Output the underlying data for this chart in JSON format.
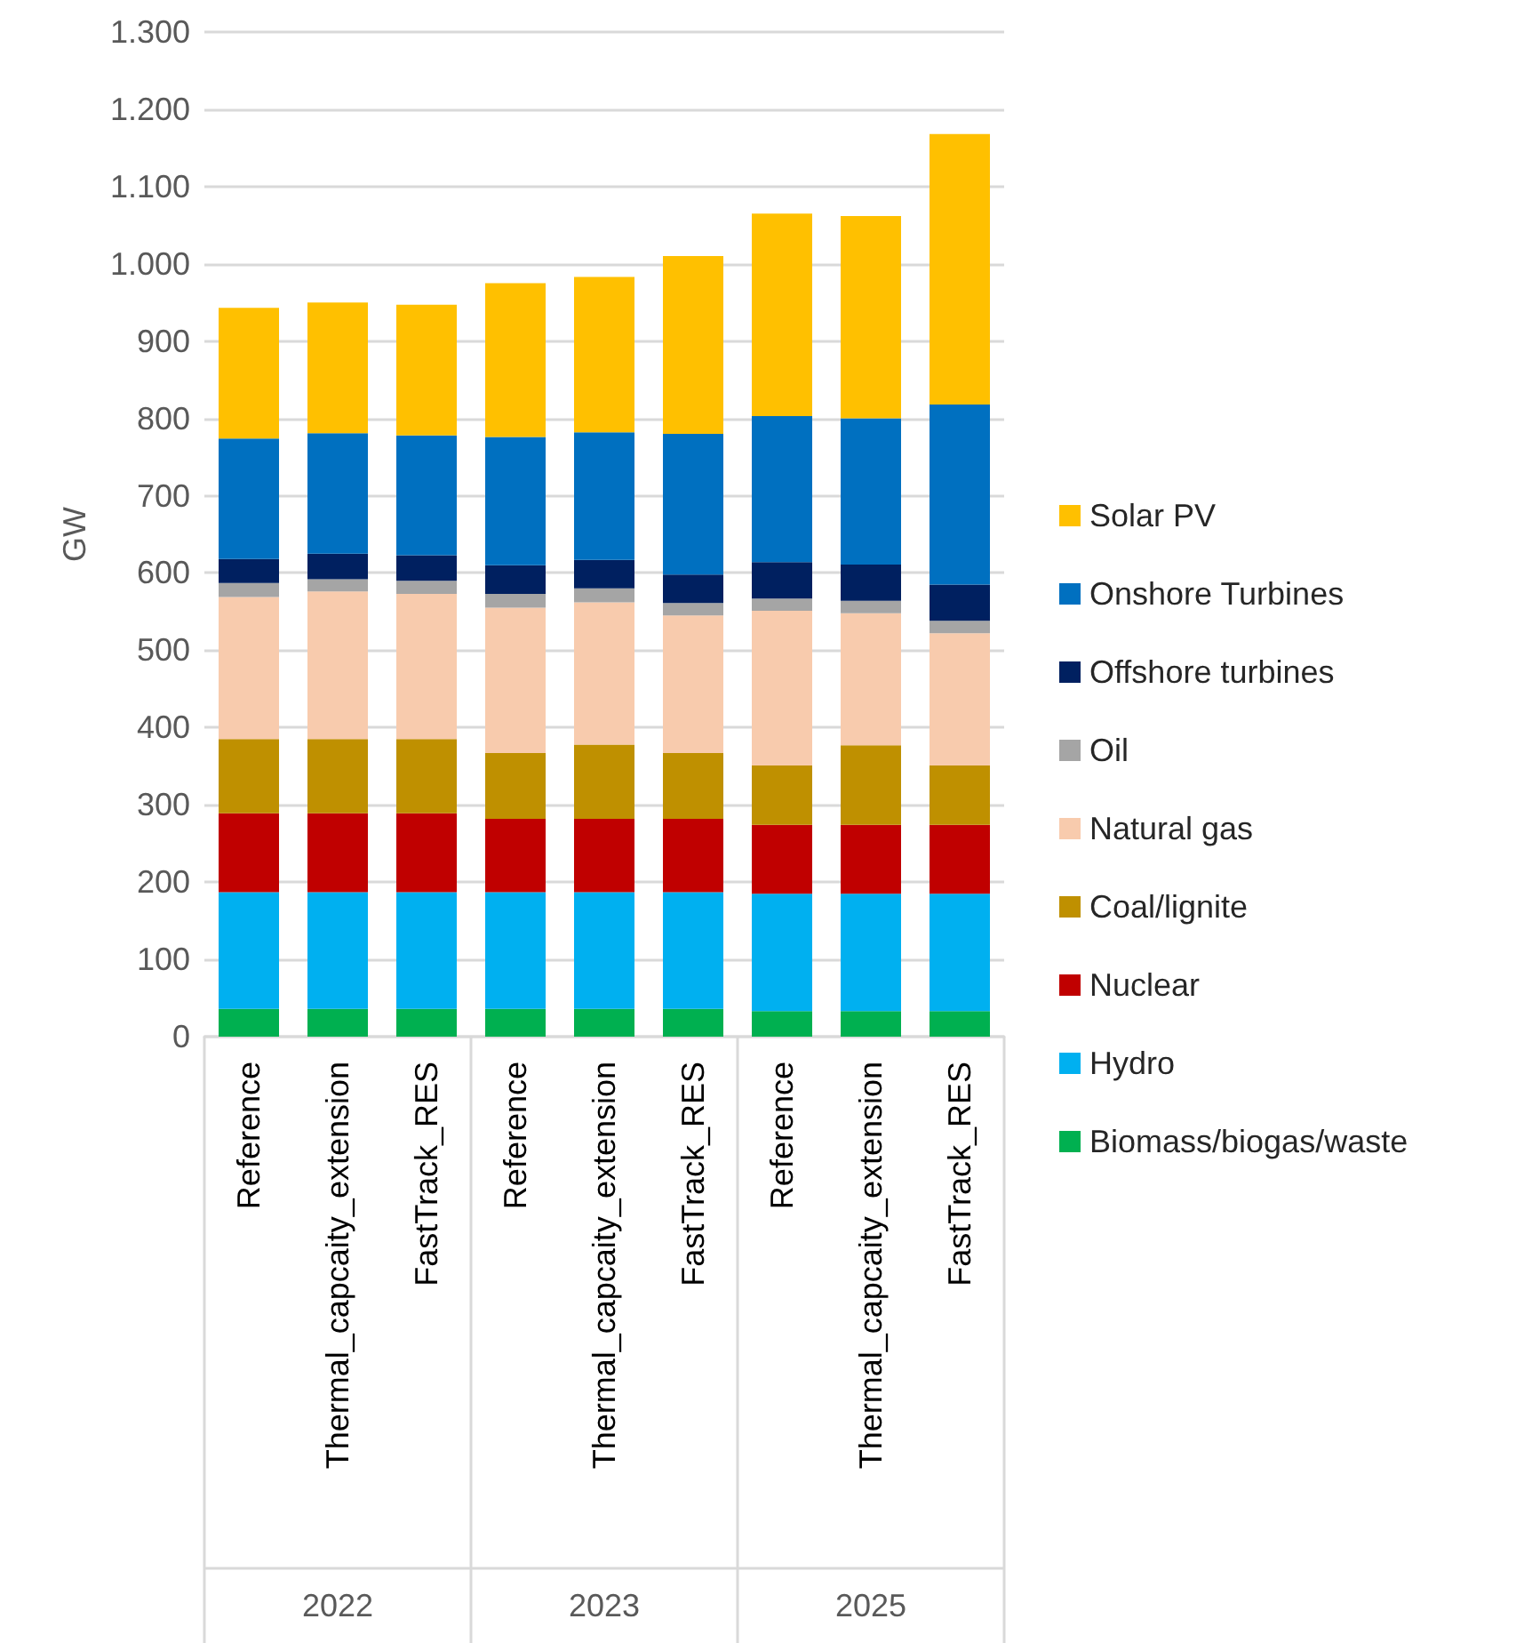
{
  "chart_data": {
    "type": "bar",
    "stacked": true,
    "ylabel": "GW",
    "categories": [
      "Reference",
      "Thermal_capcaity_extension",
      "FastTrack_RES",
      "Reference",
      "Thermal_capcaity_extension",
      "FastTrack_RES",
      "Reference",
      "Thermal_capcaity_extension",
      "FastTrack_RES"
    ],
    "annotations": [
      "2022",
      "2023",
      "2025"
    ],
    "series": [
      {
        "name": "Biomass/biogas/waste",
        "color": "#00b050",
        "values": [
          36,
          36,
          36,
          36,
          36,
          36,
          33,
          33,
          33
        ]
      },
      {
        "name": "Hydro",
        "color": "#00b0f0",
        "values": [
          151,
          151,
          151,
          151,
          151,
          151,
          152,
          152,
          152
        ]
      },
      {
        "name": "Nuclear",
        "color": "#c00000",
        "values": [
          102,
          102,
          102,
          95,
          95,
          95,
          89,
          89,
          89
        ]
      },
      {
        "name": "Coal/lignite",
        "color": "#bf9000",
        "values": [
          96,
          96,
          96,
          85,
          96,
          85,
          77,
          103,
          77
        ]
      },
      {
        "name": "Natural gas",
        "color": "#f8cbad",
        "values": [
          184,
          191,
          188,
          188,
          184,
          178,
          200,
          171,
          171
        ]
      },
      {
        "name": "Oil",
        "color": "#a5a5a5",
        "values": [
          18,
          16,
          17,
          18,
          18,
          16,
          16,
          16,
          16
        ]
      },
      {
        "name": "Offshore turbines",
        "color": "#002060",
        "values": [
          31,
          33,
          33,
          37,
          37,
          37,
          47,
          47,
          47
        ]
      },
      {
        "name": "Onshore Turbines",
        "color": "#0070c0",
        "values": [
          156,
          156,
          155,
          166,
          165,
          182,
          189,
          189,
          233
        ]
      },
      {
        "name": "Solar PV",
        "color": "#ffc000",
        "values": [
          169,
          169,
          169,
          199,
          201,
          230,
          262,
          262,
          350
        ]
      }
    ],
    "ylim": [
      0,
      1300
    ],
    "yticks": [
      0,
      100,
      200,
      300,
      400,
      500,
      600,
      700,
      800,
      900,
      {
        "value": 1000,
        "label": "1.000"
      },
      {
        "value": 1100,
        "label": "1.100"
      },
      {
        "value": 1200,
        "label": "1.200"
      },
      {
        "value": 1300,
        "label": "1.300"
      }
    ],
    "grid": "y",
    "legend": "right"
  }
}
